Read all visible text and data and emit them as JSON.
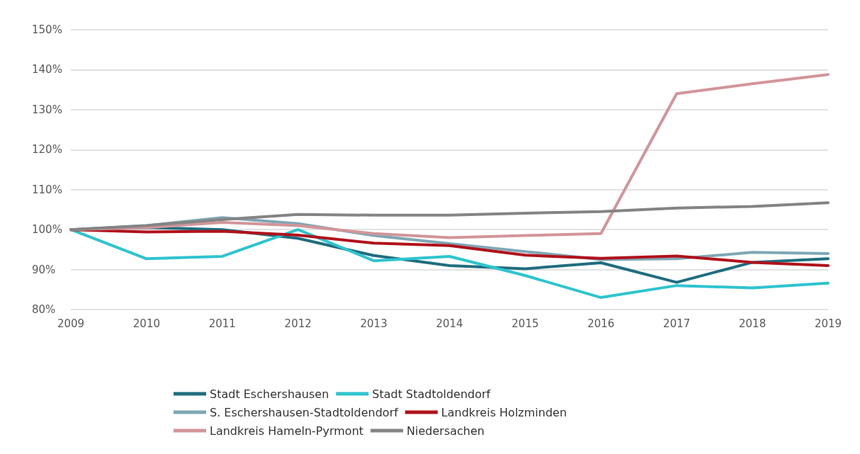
{
  "chart_data": {
    "type": "line",
    "categories": [
      "2009",
      "2010",
      "2011",
      "2012",
      "2013",
      "2014",
      "2015",
      "2016",
      "2017",
      "2018",
      "2019"
    ],
    "series": [
      {
        "name": "Stadt Eschershausen",
        "color": "#1f6e7e",
        "values": [
          100,
          100.5,
          100,
          97.8,
          93.5,
          91,
          90.2,
          91.7,
          86.8,
          91.8,
          92.7
        ]
      },
      {
        "name": "Stadt Stadtoldendorf",
        "color": "#2ec4cf",
        "values": [
          100,
          92.7,
          93.3,
          100,
          92.2,
          93.3,
          88.5,
          83,
          86,
          85.4,
          86.6
        ]
      },
      {
        "name": "S. Eschershausen-Stadtoldendorf",
        "color": "#7fa7b5",
        "values": [
          100,
          101,
          103,
          101.5,
          98.5,
          96.5,
          94.5,
          92.5,
          92.7,
          94.3,
          94
        ]
      },
      {
        "name": "Landkreis Holzminden",
        "color": "#b0121b",
        "values": [
          100,
          99.4,
          99.6,
          98.6,
          96.6,
          96,
          93.6,
          92.8,
          93.4,
          91.8,
          91
        ]
      },
      {
        "name": "Landkreis Hameln-Pyrmont",
        "color": "#d2959a",
        "values": [
          100,
          100.5,
          101.8,
          101,
          99,
          98,
          98.5,
          99,
          134,
          136.5,
          138.8
        ]
      },
      {
        "name": "Niedersachen",
        "color": "#848484",
        "values": [
          100,
          101,
          102.5,
          103.8,
          103.6,
          103.6,
          104.1,
          104.5,
          105.4,
          105.8,
          106.7
        ]
      }
    ],
    "ylim": [
      80,
      150
    ],
    "yticks": [
      {
        "value": 80,
        "label": "80%"
      },
      {
        "value": 90,
        "label": "90%"
      },
      {
        "value": 100,
        "label": "100%"
      },
      {
        "value": 110,
        "label": "110%"
      },
      {
        "value": 120,
        "label": "120%"
      },
      {
        "value": 130,
        "label": "130%"
      },
      {
        "value": 140,
        "label": "140%"
      },
      {
        "value": 150,
        "label": "150%"
      }
    ],
    "grid": "y",
    "legend": "bottom",
    "marker": "none",
    "line_style": "solid"
  }
}
